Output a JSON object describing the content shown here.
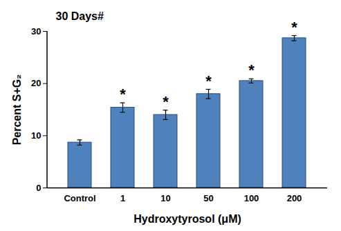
{
  "chart_data": {
    "type": "bar",
    "title": "30 Days#",
    "x_label": "Hydroxytyrosol (μM)",
    "y_label": "Percent S+G₂",
    "categories": [
      "Control",
      "1",
      "10",
      "50",
      "100",
      "200"
    ],
    "values": [
      8.7,
      15.4,
      14.0,
      18.0,
      20.5,
      28.7
    ],
    "errors": [
      0.5,
      0.9,
      0.9,
      0.9,
      0.4,
      0.5
    ],
    "annotations": [
      {
        "category": "1",
        "text": "*"
      },
      {
        "category": "10",
        "text": "*"
      },
      {
        "category": "50",
        "text": "*"
      },
      {
        "category": "100",
        "text": "*"
      },
      {
        "category": "200",
        "text": "*"
      }
    ],
    "color": "#4F81BD",
    "ylim": [
      0,
      30
    ],
    "yticks": [
      0,
      10,
      20,
      30
    ],
    "grid": false
  }
}
